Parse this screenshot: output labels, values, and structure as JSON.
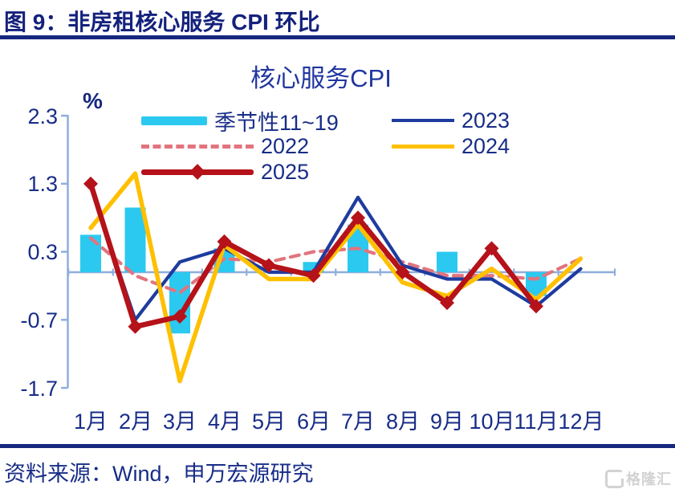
{
  "figure": {
    "title": "图 9：非房租核心服务 CPI 环比"
  },
  "chart": {
    "title": "核心服务CPI",
    "unit_label": "%",
    "ytick_labels": [
      "2.3",
      "1.3",
      "0.3",
      "-0.7",
      "-1.7"
    ]
  },
  "chart_data": {
    "type": "bar+line combo",
    "title": "核心服务CPI",
    "ylabel": "%",
    "ylim": [
      -1.7,
      2.3
    ],
    "yticks": [
      2.3,
      1.3,
      0.3,
      -0.7,
      -1.7
    ],
    "grid": false,
    "legend_position": "top-left, two columns",
    "categories": [
      "1月",
      "2月",
      "3月",
      "4月",
      "5月",
      "6月",
      "7月",
      "8月",
      "9月",
      "10月",
      "11月",
      "12月"
    ],
    "series": [
      {
        "name": "季节性11~19",
        "type": "bar",
        "color": "#2bc9f0",
        "values": [
          0.55,
          0.95,
          -0.9,
          0.35,
          null,
          0.15,
          0.7,
          null,
          0.3,
          null,
          -0.35,
          null
        ]
      },
      {
        "name": "2022",
        "type": "line",
        "style": "dashed",
        "color": "#e2747e",
        "values": [
          0.5,
          -0.05,
          -0.3,
          0.2,
          0.15,
          0.3,
          0.35,
          0.15,
          -0.05,
          -0.05,
          -0.1,
          0.2
        ]
      },
      {
        "name": "2023",
        "type": "line",
        "style": "solid",
        "color": "#1e3c9e",
        "values": [
          1.25,
          -0.7,
          0.15,
          0.35,
          0.0,
          0.0,
          1.1,
          0.1,
          -0.1,
          -0.1,
          -0.5,
          0.05
        ]
      },
      {
        "name": "2024",
        "type": "line",
        "style": "solid",
        "color": "#ffc000",
        "values": [
          0.65,
          1.45,
          -1.6,
          0.4,
          -0.1,
          -0.1,
          0.7,
          -0.15,
          -0.35,
          0.05,
          -0.4,
          0.2
        ]
      },
      {
        "name": "2025",
        "type": "line",
        "style": "solid",
        "marker": "diamond",
        "color": "#b5121a",
        "values": [
          1.3,
          -0.8,
          -0.65,
          0.45,
          0.1,
          -0.05,
          0.8,
          0.0,
          -0.45,
          0.35,
          -0.5,
          null
        ]
      }
    ],
    "axis_color": "#8faedc",
    "text_color": "#182d87"
  },
  "footer": {
    "source": "资料来源：Wind，申万宏源研究",
    "watermark": "格隆汇",
    "watermark_icon": "gelonghui-g-logo"
  }
}
